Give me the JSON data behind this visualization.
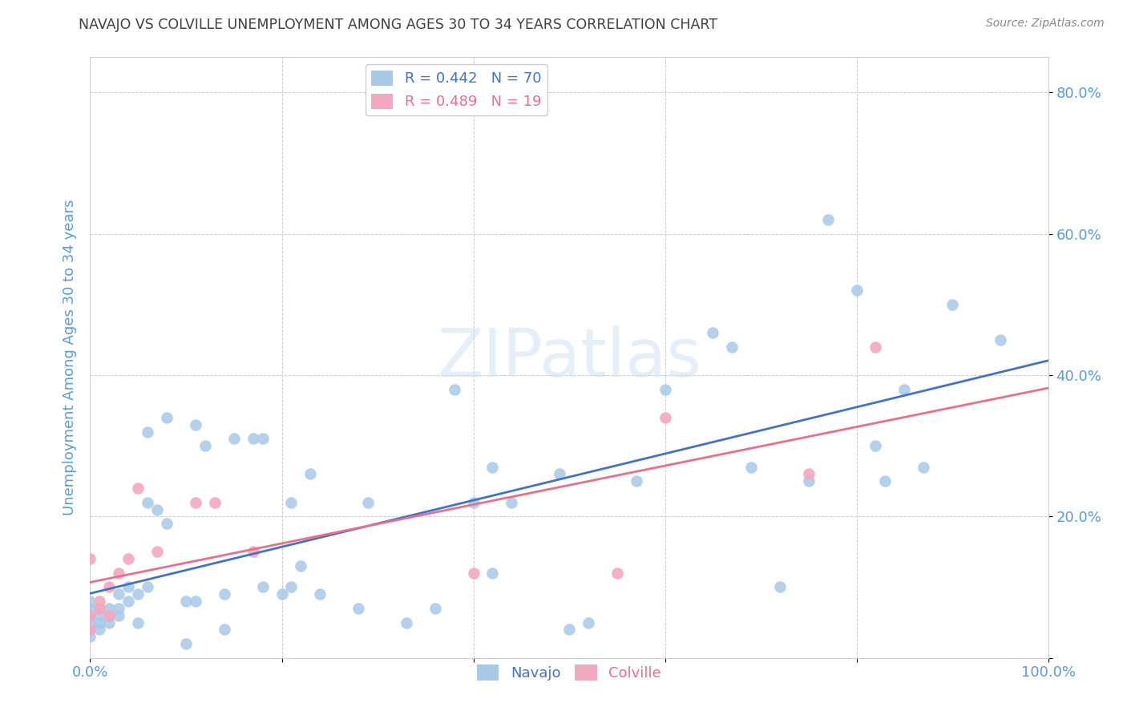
{
  "title": "NAVAJO VS COLVILLE UNEMPLOYMENT AMONG AGES 30 TO 34 YEARS CORRELATION CHART",
  "source": "Source: ZipAtlas.com",
  "ylabel": "Unemployment Among Ages 30 to 34 years",
  "xlim": [
    0.0,
    1.0
  ],
  "ylim": [
    0.0,
    0.85
  ],
  "x_ticks": [
    0.0,
    0.2,
    0.4,
    0.6,
    0.8,
    1.0
  ],
  "y_ticks": [
    0.0,
    0.2,
    0.4,
    0.6,
    0.8
  ],
  "x_tick_labels": [
    "0.0%",
    "",
    "",
    "",
    "",
    "100.0%"
  ],
  "y_tick_labels": [
    "",
    "20.0%",
    "40.0%",
    "60.0%",
    "80.0%"
  ],
  "navajo_color": "#a8c8e8",
  "colville_color": "#f4a8c0",
  "navajo_line_color": "#4472c4",
  "colville_line_color": "#e8708a",
  "navajo_R": 0.442,
  "navajo_N": 70,
  "colville_R": 0.489,
  "colville_N": 19,
  "background_color": "#ffffff",
  "grid_color": "#cccccc",
  "title_color": "#404040",
  "axis_label_color": "#5b9bd5",
  "tick_label_color": "#5b9bd5",
  "navajo_x": [
    0.0,
    0.0,
    0.0,
    0.0,
    0.0,
    0.0,
    0.01,
    0.01,
    0.01,
    0.01,
    0.02,
    0.02,
    0.02,
    0.03,
    0.03,
    0.03,
    0.04,
    0.04,
    0.05,
    0.05,
    0.06,
    0.06,
    0.06,
    0.07,
    0.08,
    0.08,
    0.1,
    0.1,
    0.11,
    0.11,
    0.12,
    0.14,
    0.14,
    0.15,
    0.17,
    0.18,
    0.18,
    0.2,
    0.21,
    0.21,
    0.22,
    0.23,
    0.24,
    0.28,
    0.29,
    0.33,
    0.36,
    0.38,
    0.4,
    0.42,
    0.42,
    0.44,
    0.49,
    0.5,
    0.52,
    0.57,
    0.6,
    0.65,
    0.67,
    0.69,
    0.72,
    0.75,
    0.77,
    0.8,
    0.82,
    0.83,
    0.85,
    0.87,
    0.9,
    0.95
  ],
  "navajo_y": [
    0.03,
    0.04,
    0.05,
    0.06,
    0.07,
    0.08,
    0.04,
    0.05,
    0.06,
    0.07,
    0.05,
    0.06,
    0.07,
    0.06,
    0.07,
    0.09,
    0.08,
    0.1,
    0.05,
    0.09,
    0.1,
    0.22,
    0.32,
    0.21,
    0.19,
    0.34,
    0.02,
    0.08,
    0.08,
    0.33,
    0.3,
    0.04,
    0.09,
    0.31,
    0.31,
    0.31,
    0.1,
    0.09,
    0.22,
    0.1,
    0.13,
    0.26,
    0.09,
    0.07,
    0.22,
    0.05,
    0.07,
    0.38,
    0.22,
    0.12,
    0.27,
    0.22,
    0.26,
    0.04,
    0.05,
    0.25,
    0.38,
    0.46,
    0.44,
    0.27,
    0.1,
    0.25,
    0.62,
    0.52,
    0.3,
    0.25,
    0.38,
    0.27,
    0.5,
    0.45
  ],
  "colville_x": [
    0.0,
    0.0,
    0.0,
    0.01,
    0.01,
    0.02,
    0.02,
    0.03,
    0.04,
    0.05,
    0.07,
    0.11,
    0.13,
    0.17,
    0.4,
    0.55,
    0.6,
    0.75,
    0.82
  ],
  "colville_y": [
    0.04,
    0.06,
    0.14,
    0.07,
    0.08,
    0.06,
    0.1,
    0.12,
    0.14,
    0.24,
    0.15,
    0.22,
    0.22,
    0.15,
    0.12,
    0.12,
    0.34,
    0.26,
    0.44
  ]
}
